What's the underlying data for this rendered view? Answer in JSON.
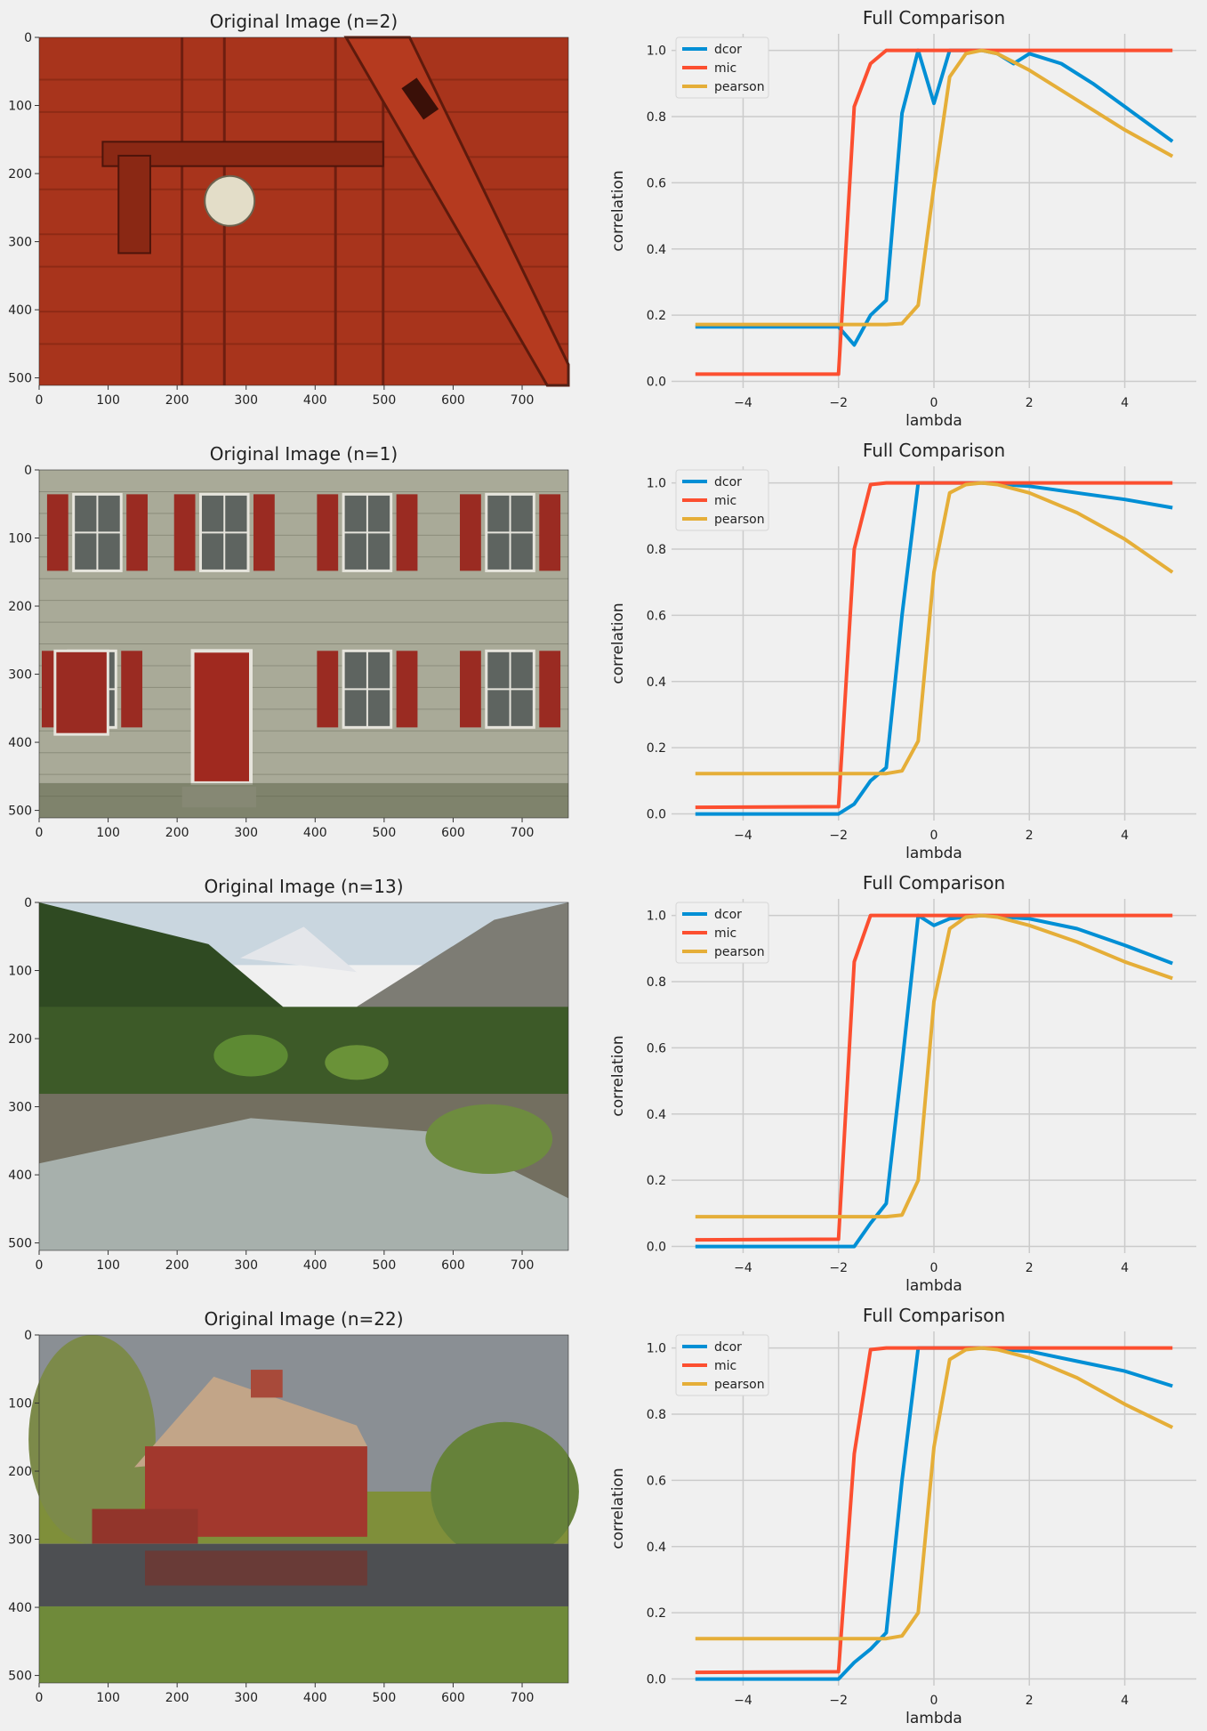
{
  "figure": {
    "background": "#f0f0f0",
    "series_colors": {
      "dcor": "#008fd5",
      "mic": "#fc4f30",
      "pearson": "#e5ae38"
    }
  },
  "rows": [
    {
      "image": {
        "title": "Original Image (n=2)",
        "description": "red barn door with white knob and latch",
        "xticks": [
          "0",
          "100",
          "200",
          "300",
          "400",
          "500",
          "600",
          "700"
        ],
        "yticks": [
          "0",
          "100",
          "200",
          "300",
          "400",
          "500"
        ],
        "xlim": [
          0,
          767
        ],
        "ylim": [
          0,
          511
        ]
      },
      "chart": {
        "title": "Full Comparison",
        "xlabel": "lambda",
        "ylabel": "correlation",
        "xticks": [
          "−4",
          "−2",
          "0",
          "2",
          "4"
        ],
        "yticks": [
          "0.0",
          "0.2",
          "0.4",
          "0.6",
          "0.8",
          "1.0"
        ],
        "legend": [
          "dcor",
          "mic",
          "pearson"
        ]
      }
    },
    {
      "image": {
        "title": "Original Image (n=1)",
        "description": "stone building facade with red shutters and red door",
        "xticks": [
          "0",
          "100",
          "200",
          "300",
          "400",
          "500",
          "600",
          "700"
        ],
        "yticks": [
          "0",
          "100",
          "200",
          "300",
          "400",
          "500"
        ],
        "xlim": [
          0,
          767
        ],
        "ylim": [
          0,
          511
        ]
      },
      "chart": {
        "title": "Full Comparison",
        "xlabel": "lambda",
        "ylabel": "correlation",
        "xticks": [
          "−4",
          "−2",
          "0",
          "2",
          "4"
        ],
        "yticks": [
          "0.0",
          "0.2",
          "0.4",
          "0.6",
          "0.8",
          "1.0"
        ],
        "legend": [
          "dcor",
          "mic",
          "pearson"
        ]
      }
    },
    {
      "image": {
        "title": "Original Image (n=13)",
        "description": "mountain stream with forest and snowy peaks",
        "xticks": [
          "0",
          "100",
          "200",
          "300",
          "400",
          "500",
          "600",
          "700"
        ],
        "yticks": [
          "0",
          "100",
          "200",
          "300",
          "400",
          "500"
        ],
        "xlim": [
          0,
          767
        ],
        "ylim": [
          0,
          511
        ]
      },
      "chart": {
        "title": "Full Comparison",
        "xlabel": "lambda",
        "ylabel": "correlation",
        "xticks": [
          "−4",
          "−2",
          "0",
          "2",
          "4"
        ],
        "yticks": [
          "0.0",
          "0.2",
          "0.4",
          "0.6",
          "0.8",
          "1.0"
        ],
        "legend": [
          "dcor",
          "mic",
          "pearson"
        ]
      }
    },
    {
      "image": {
        "title": "Original Image (n=22)",
        "description": "red barn reflected in a pond under stormy sky",
        "xticks": [
          "0",
          "100",
          "200",
          "300",
          "400",
          "500",
          "600",
          "700"
        ],
        "yticks": [
          "0",
          "100",
          "200",
          "300",
          "400",
          "500"
        ],
        "xlim": [
          0,
          767
        ],
        "ylim": [
          0,
          511
        ]
      },
      "chart": {
        "title": "Full Comparison",
        "xlabel": "lambda",
        "ylabel": "correlation",
        "xticks": [
          "−4",
          "−2",
          "0",
          "2",
          "4"
        ],
        "yticks": [
          "0.0",
          "0.2",
          "0.4",
          "0.6",
          "0.8",
          "1.0"
        ],
        "legend": [
          "dcor",
          "mic",
          "pearson"
        ]
      }
    }
  ],
  "chart_data": [
    {
      "type": "line",
      "xlim": [
        -5.5,
        5.5
      ],
      "ylim": [
        -0.02,
        1.05
      ],
      "legend_position": "upper-left",
      "grid": true,
      "series": [
        {
          "name": "dcor",
          "x": [
            -5.0,
            -2.0,
            -1.67,
            -1.33,
            -1.0,
            -0.67,
            -0.33,
            0.0,
            0.33,
            0.67,
            1.0,
            1.33,
            1.67,
            2.0,
            2.67,
            3.33,
            4.0,
            5.0
          ],
          "y": [
            0.165,
            0.165,
            0.11,
            0.2,
            0.245,
            0.81,
            1.0,
            0.84,
            1.0,
            1.0,
            1.0,
            0.99,
            0.96,
            0.99,
            0.96,
            0.9,
            0.83,
            0.725
          ]
        },
        {
          "name": "mic",
          "x": [
            -5.0,
            -2.0,
            -1.67,
            -1.33,
            -1.0,
            5.0
          ],
          "y": [
            0.022,
            0.022,
            0.83,
            0.96,
            1.0,
            1.0
          ]
        },
        {
          "name": "pearson",
          "x": [
            -5.0,
            -1.0,
            -0.67,
            -0.33,
            0.0,
            0.33,
            0.67,
            1.0,
            1.33,
            2.0,
            3.0,
            4.0,
            5.0
          ],
          "y": [
            0.172,
            0.172,
            0.175,
            0.23,
            0.59,
            0.92,
            0.99,
            1.0,
            0.99,
            0.94,
            0.85,
            0.76,
            0.68
          ]
        }
      ]
    },
    {
      "type": "line",
      "xlim": [
        -5.5,
        5.5
      ],
      "ylim": [
        -0.02,
        1.05
      ],
      "legend_position": "upper-left",
      "grid": true,
      "series": [
        {
          "name": "dcor",
          "x": [
            -5.0,
            -2.0,
            -1.67,
            -1.33,
            -1.0,
            -0.67,
            -0.33,
            0.0,
            1.0,
            2.0,
            3.0,
            4.0,
            5.0
          ],
          "y": [
            0.0,
            0.0,
            0.03,
            0.1,
            0.14,
            0.6,
            1.0,
            1.0,
            1.0,
            0.99,
            0.97,
            0.95,
            0.925
          ]
        },
        {
          "name": "mic",
          "x": [
            -5.0,
            -2.0,
            -1.67,
            -1.33,
            -1.0,
            5.0
          ],
          "y": [
            0.02,
            0.022,
            0.8,
            0.995,
            1.0,
            1.0
          ]
        },
        {
          "name": "pearson",
          "x": [
            -5.0,
            -1.0,
            -0.67,
            -0.33,
            0.0,
            0.33,
            0.67,
            1.0,
            1.33,
            2.0,
            3.0,
            4.0,
            5.0
          ],
          "y": [
            0.122,
            0.122,
            0.13,
            0.22,
            0.73,
            0.97,
            0.995,
            1.0,
            0.995,
            0.97,
            0.91,
            0.83,
            0.73
          ]
        }
      ]
    },
    {
      "type": "line",
      "xlim": [
        -5.5,
        5.5
      ],
      "ylim": [
        -0.02,
        1.05
      ],
      "legend_position": "upper-left",
      "grid": true,
      "series": [
        {
          "name": "dcor",
          "x": [
            -5.0,
            -1.67,
            -1.33,
            -1.0,
            -0.67,
            -0.33,
            0.0,
            0.33,
            1.0,
            2.0,
            3.0,
            4.0,
            5.0
          ],
          "y": [
            0.0,
            0.0,
            0.07,
            0.13,
            0.55,
            1.0,
            0.97,
            0.99,
            1.0,
            0.99,
            0.96,
            0.91,
            0.855
          ]
        },
        {
          "name": "mic",
          "x": [
            -5.0,
            -2.0,
            -1.67,
            -1.33,
            5.0
          ],
          "y": [
            0.02,
            0.022,
            0.86,
            1.0,
            1.0
          ]
        },
        {
          "name": "pearson",
          "x": [
            -5.0,
            -1.0,
            -0.67,
            -0.33,
            0.0,
            0.33,
            0.67,
            1.0,
            1.33,
            2.0,
            3.0,
            4.0,
            5.0
          ],
          "y": [
            0.09,
            0.09,
            0.095,
            0.2,
            0.74,
            0.96,
            0.995,
            1.0,
            0.995,
            0.97,
            0.92,
            0.86,
            0.81
          ]
        }
      ]
    },
    {
      "type": "line",
      "xlim": [
        -5.5,
        5.5
      ],
      "ylim": [
        -0.02,
        1.05
      ],
      "legend_position": "upper-left",
      "grid": true,
      "series": [
        {
          "name": "dcor",
          "x": [
            -5.0,
            -2.0,
            -1.67,
            -1.33,
            -1.0,
            -0.67,
            -0.33,
            0.0,
            1.0,
            2.0,
            3.0,
            4.0,
            5.0
          ],
          "y": [
            0.0,
            0.0,
            0.05,
            0.09,
            0.14,
            0.6,
            1.0,
            1.0,
            1.0,
            0.99,
            0.96,
            0.93,
            0.885
          ]
        },
        {
          "name": "mic",
          "x": [
            -5.0,
            -2.0,
            -1.67,
            -1.33,
            -1.0,
            5.0
          ],
          "y": [
            0.02,
            0.022,
            0.68,
            0.995,
            1.0,
            1.0
          ]
        },
        {
          "name": "pearson",
          "x": [
            -5.0,
            -1.0,
            -0.67,
            -0.33,
            0.0,
            0.33,
            0.67,
            1.0,
            1.33,
            2.0,
            3.0,
            4.0,
            5.0
          ],
          "y": [
            0.122,
            0.122,
            0.13,
            0.2,
            0.7,
            0.965,
            0.995,
            1.0,
            0.995,
            0.97,
            0.91,
            0.83,
            0.76
          ]
        }
      ]
    }
  ]
}
